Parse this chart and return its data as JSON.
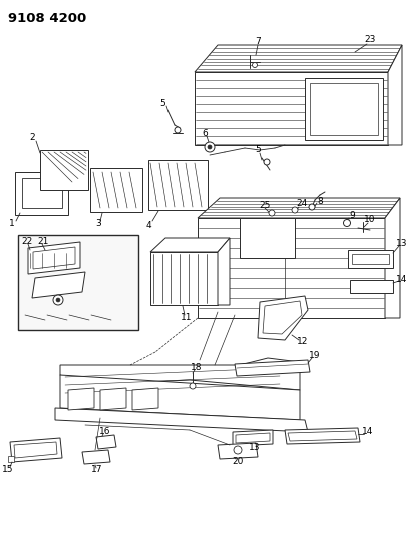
{
  "title_code": "9108 4200",
  "bg_color": "#ffffff",
  "fig_width": 4.11,
  "fig_height": 5.33,
  "dpi": 100,
  "line_color": "#2a2a2a",
  "stroke_width": 0.7,
  "label_fontsize": 6.5,
  "title_fontsize": 9.5
}
